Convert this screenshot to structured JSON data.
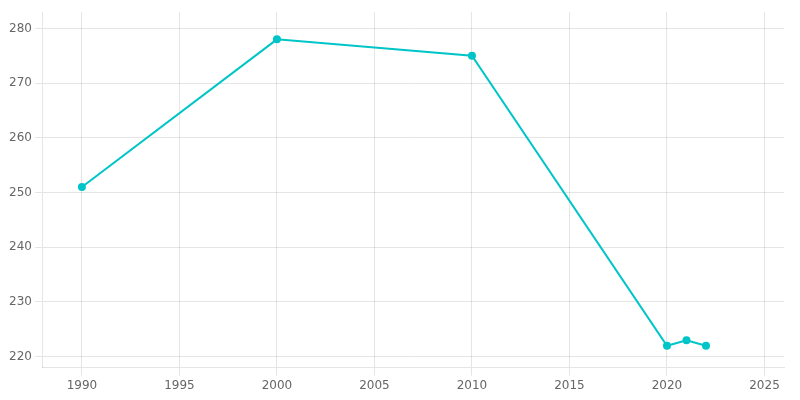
{
  "chart_data": {
    "type": "line",
    "x": [
      1990,
      2000,
      2010,
      2020,
      2021,
      2022
    ],
    "values": [
      251,
      278,
      275,
      222,
      223,
      222
    ],
    "color": "#00C5C8",
    "marker": "circle",
    "xlim": [
      1988,
      2026
    ],
    "ylim": [
      218,
      283
    ],
    "xticks": [
      1990,
      1995,
      2000,
      2005,
      2010,
      2015,
      2020,
      2025
    ],
    "yticks": [
      220,
      230,
      240,
      250,
      260,
      270,
      280
    ],
    "grid": true
  }
}
